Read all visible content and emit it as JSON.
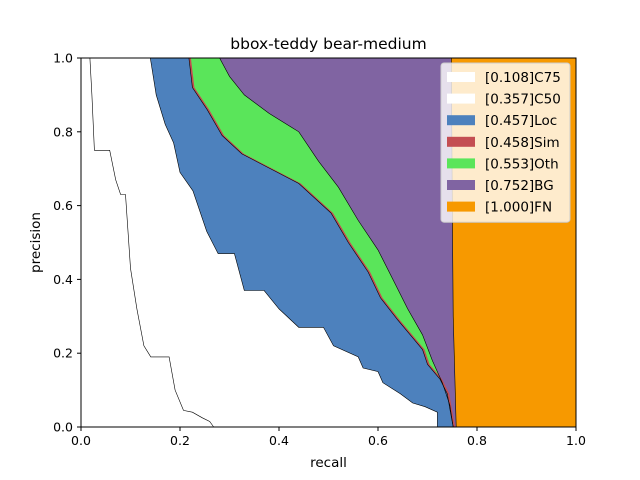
{
  "chart_data": {
    "type": "area",
    "title": "bbox-teddy bear-medium",
    "xlabel": "recall",
    "ylabel": "precision",
    "xlim": [
      0,
      1
    ],
    "ylim": [
      0,
      1
    ],
    "x_ticks": [
      "0.0",
      "0.2",
      "0.4",
      "0.6",
      "0.8",
      "1.0"
    ],
    "y_ticks": [
      "0.0",
      "0.2",
      "0.4",
      "0.6",
      "0.8",
      "1.0"
    ],
    "grid": false,
    "legend_position": "top-right",
    "series": [
      {
        "name": "[0.108]C75",
        "color": "#ffffff",
        "curve": [
          [
            0.018,
            1.0
          ],
          [
            0.022,
            0.9
          ],
          [
            0.027,
            0.75
          ],
          [
            0.058,
            0.75
          ],
          [
            0.07,
            0.67
          ],
          [
            0.08,
            0.63
          ],
          [
            0.09,
            0.63
          ],
          [
            0.1,
            0.43
          ],
          [
            0.113,
            0.32
          ],
          [
            0.127,
            0.22
          ],
          [
            0.141,
            0.19
          ],
          [
            0.178,
            0.19
          ],
          [
            0.19,
            0.1
          ],
          [
            0.207,
            0.045
          ],
          [
            0.225,
            0.04
          ],
          [
            0.245,
            0.025
          ],
          [
            0.26,
            0.015
          ],
          [
            0.268,
            0.0
          ]
        ]
      },
      {
        "name": "[0.357]C50",
        "color": "#ffffff",
        "curve": [
          [
            0.14,
            1.0
          ],
          [
            0.152,
            0.9
          ],
          [
            0.17,
            0.82
          ],
          [
            0.187,
            0.77
          ],
          [
            0.2,
            0.69
          ],
          [
            0.226,
            0.64
          ],
          [
            0.254,
            0.53
          ],
          [
            0.277,
            0.47
          ],
          [
            0.31,
            0.47
          ],
          [
            0.33,
            0.37
          ],
          [
            0.37,
            0.37
          ],
          [
            0.4,
            0.32
          ],
          [
            0.44,
            0.27
          ],
          [
            0.49,
            0.27
          ],
          [
            0.51,
            0.22
          ],
          [
            0.56,
            0.19
          ],
          [
            0.57,
            0.16
          ],
          [
            0.6,
            0.15
          ],
          [
            0.61,
            0.12
          ],
          [
            0.645,
            0.09
          ],
          [
            0.67,
            0.065
          ],
          [
            0.695,
            0.055
          ],
          [
            0.72,
            0.04
          ],
          [
            0.72,
            0.0
          ]
        ]
      },
      {
        "name": "[0.457]Loc",
        "color": "#4d81bd",
        "curve": [
          [
            0.14,
            1.0
          ],
          [
            0.152,
            0.9
          ],
          [
            0.17,
            0.82
          ],
          [
            0.187,
            0.77
          ],
          [
            0.2,
            0.69
          ],
          [
            0.226,
            0.64
          ],
          [
            0.254,
            0.53
          ],
          [
            0.277,
            0.47
          ],
          [
            0.31,
            0.47
          ],
          [
            0.33,
            0.37
          ],
          [
            0.37,
            0.37
          ],
          [
            0.4,
            0.32
          ],
          [
            0.44,
            0.27
          ],
          [
            0.49,
            0.27
          ],
          [
            0.51,
            0.22
          ],
          [
            0.56,
            0.19
          ],
          [
            0.57,
            0.16
          ],
          [
            0.6,
            0.15
          ],
          [
            0.61,
            0.12
          ],
          [
            0.645,
            0.09
          ],
          [
            0.67,
            0.065
          ],
          [
            0.695,
            0.055
          ],
          [
            0.72,
            0.04
          ],
          [
            0.72,
            0.0
          ]
        ],
        "upper": [
          [
            0.14,
            1.0
          ],
          [
            0.218,
            1.0
          ],
          [
            0.225,
            0.92
          ],
          [
            0.255,
            0.86
          ],
          [
            0.285,
            0.79
          ],
          [
            0.325,
            0.74
          ],
          [
            0.44,
            0.66
          ],
          [
            0.505,
            0.58
          ],
          [
            0.54,
            0.5
          ],
          [
            0.58,
            0.42
          ],
          [
            0.605,
            0.35
          ],
          [
            0.64,
            0.29
          ],
          [
            0.665,
            0.25
          ],
          [
            0.69,
            0.21
          ],
          [
            0.7,
            0.17
          ],
          [
            0.725,
            0.13
          ],
          [
            0.74,
            0.09
          ],
          [
            0.745,
            0.05
          ],
          [
            0.752,
            0.0
          ]
        ]
      },
      {
        "name": "[0.458]Sim",
        "color": "#c44e52",
        "curve": [
          [
            0.218,
            1.0
          ],
          [
            0.225,
            0.92
          ],
          [
            0.255,
            0.86
          ],
          [
            0.285,
            0.79
          ],
          [
            0.325,
            0.74
          ],
          [
            0.44,
            0.66
          ],
          [
            0.505,
            0.58
          ],
          [
            0.54,
            0.5
          ],
          [
            0.58,
            0.42
          ],
          [
            0.605,
            0.35
          ],
          [
            0.64,
            0.29
          ],
          [
            0.665,
            0.25
          ],
          [
            0.69,
            0.21
          ],
          [
            0.7,
            0.17
          ],
          [
            0.725,
            0.13
          ],
          [
            0.74,
            0.09
          ],
          [
            0.745,
            0.05
          ],
          [
            0.752,
            0.0
          ]
        ]
      },
      {
        "name": "[0.553]Oth",
        "color": "#5ae55a",
        "curve": [
          [
            0.218,
            1.0
          ],
          [
            0.225,
            0.92
          ],
          [
            0.255,
            0.86
          ],
          [
            0.285,
            0.79
          ],
          [
            0.325,
            0.74
          ],
          [
            0.44,
            0.66
          ],
          [
            0.505,
            0.58
          ],
          [
            0.54,
            0.5
          ],
          [
            0.58,
            0.42
          ],
          [
            0.605,
            0.35
          ],
          [
            0.64,
            0.29
          ],
          [
            0.665,
            0.25
          ],
          [
            0.69,
            0.21
          ],
          [
            0.7,
            0.17
          ],
          [
            0.725,
            0.13
          ],
          [
            0.74,
            0.09
          ],
          [
            0.745,
            0.05
          ],
          [
            0.752,
            0.0
          ]
        ],
        "upper": [
          [
            0.28,
            1.0
          ],
          [
            0.3,
            0.95
          ],
          [
            0.33,
            0.9
          ],
          [
            0.38,
            0.85
          ],
          [
            0.44,
            0.8
          ],
          [
            0.48,
            0.72
          ],
          [
            0.52,
            0.65
          ],
          [
            0.56,
            0.56
          ],
          [
            0.6,
            0.48
          ],
          [
            0.63,
            0.4
          ],
          [
            0.66,
            0.32
          ],
          [
            0.69,
            0.25
          ],
          [
            0.71,
            0.18
          ],
          [
            0.73,
            0.12
          ],
          [
            0.745,
            0.06
          ],
          [
            0.752,
            0.0
          ]
        ]
      },
      {
        "name": "[0.752]BG",
        "color": "#8064a2",
        "curve": [
          [
            0.748,
            1.0
          ],
          [
            0.75,
            0.6
          ],
          [
            0.752,
            0.3
          ],
          [
            0.758,
            0.0
          ]
        ]
      },
      {
        "name": "[1.000]FN",
        "color": "#f79900",
        "curve": [
          [
            1.0,
            1.0
          ],
          [
            1.0,
            0.0
          ]
        ]
      }
    ]
  }
}
